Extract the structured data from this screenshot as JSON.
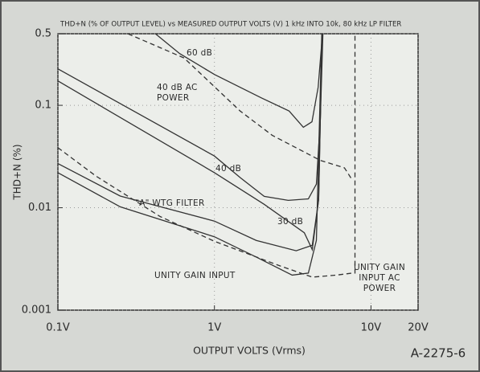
{
  "chart_data": {
    "type": "line",
    "title": "THD+N (% OF OUTPUT LEVEL) vs MEASURED OUTPUT VOLTS (V)  1 kHz INTO 10k, 80 kHz LP FILTER",
    "x_label": "OUTPUT VOLTS (Vrms)",
    "y_label": "THD+N (%)",
    "figure_id": "A-2275-6",
    "x_log": true,
    "y_log": true,
    "grid": true,
    "xlim": [
      0.1,
      20
    ],
    "ylim": [
      0.001,
      0.5
    ],
    "xticks": [
      {
        "value": 0.1,
        "label": "0.1V"
      },
      {
        "value": 1,
        "label": "1V"
      },
      {
        "value": 10,
        "label": "10V"
      },
      {
        "value": 20,
        "label": "20V"
      }
    ],
    "yticks": [
      0.001,
      0.01,
      0.1,
      0.5
    ],
    "series": [
      {
        "name": "60 dB",
        "color": "#333333",
        "dashed": false,
        "x": [
          0.42,
          0.6,
          1,
          1.5,
          2,
          3,
          3.7,
          4.2,
          4.6,
          4.9
        ],
        "values": [
          0.5,
          0.32,
          0.2,
          0.147,
          0.118,
          0.088,
          0.061,
          0.069,
          0.15,
          0.5
        ]
      },
      {
        "name": "40 dB AC POWER",
        "color": "#333333",
        "dashed": true,
        "x": [
          0.28,
          0.64,
          1.46,
          2.34,
          4.75,
          6.77,
          7.6
        ],
        "values": [
          0.5,
          0.29,
          0.088,
          0.051,
          0.029,
          0.0245,
          0.0186
        ]
      },
      {
        "name": "40 dB",
        "color": "#333333",
        "dashed": false,
        "x": [
          0.1,
          1,
          1.46,
          2.08,
          2.96,
          3.98,
          4.48,
          4.75,
          4.93
        ],
        "values": [
          0.227,
          0.032,
          0.0197,
          0.0129,
          0.0118,
          0.0122,
          0.017,
          0.073,
          0.5
        ]
      },
      {
        "name": "30 dB",
        "color": "#333333",
        "dashed": false,
        "x": [
          0.1,
          1,
          2.08,
          3.75,
          4.22,
          4.63,
          4.87
        ],
        "values": [
          0.173,
          0.022,
          0.0108,
          0.0057,
          0.0039,
          0.012,
          0.5
        ]
      },
      {
        "name": "\"A\" WTG FILTER",
        "color": "#333333",
        "dashed": false,
        "x": [
          0.1,
          0.25,
          1,
          1.85,
          3.33,
          4.22,
          4.63,
          4.87
        ],
        "values": [
          0.027,
          0.013,
          0.0074,
          0.0048,
          0.0038,
          0.0043,
          0.012,
          0.5
        ]
      },
      {
        "name": "UNITY GAIN INPUT",
        "color": "#333333",
        "dashed": false,
        "x": [
          0.1,
          0.25,
          1,
          1.85,
          3.14,
          3.98,
          4.48,
          4.85
        ],
        "values": [
          0.022,
          0.0102,
          0.0052,
          0.0033,
          0.0022,
          0.0023,
          0.0048,
          0.5
        ]
      },
      {
        "name": "UNITY GAIN INPUT AC POWER",
        "color": "#333333",
        "dashed": true,
        "x": [
          0.1,
          0.175,
          0.45,
          1,
          2.63,
          4.22,
          6,
          7.6,
          7.9,
          7.9
        ],
        "values": [
          0.0386,
          0.0204,
          0.0082,
          0.0047,
          0.0027,
          0.0021,
          0.0022,
          0.0023,
          0.0023,
          0.5
        ]
      }
    ]
  }
}
